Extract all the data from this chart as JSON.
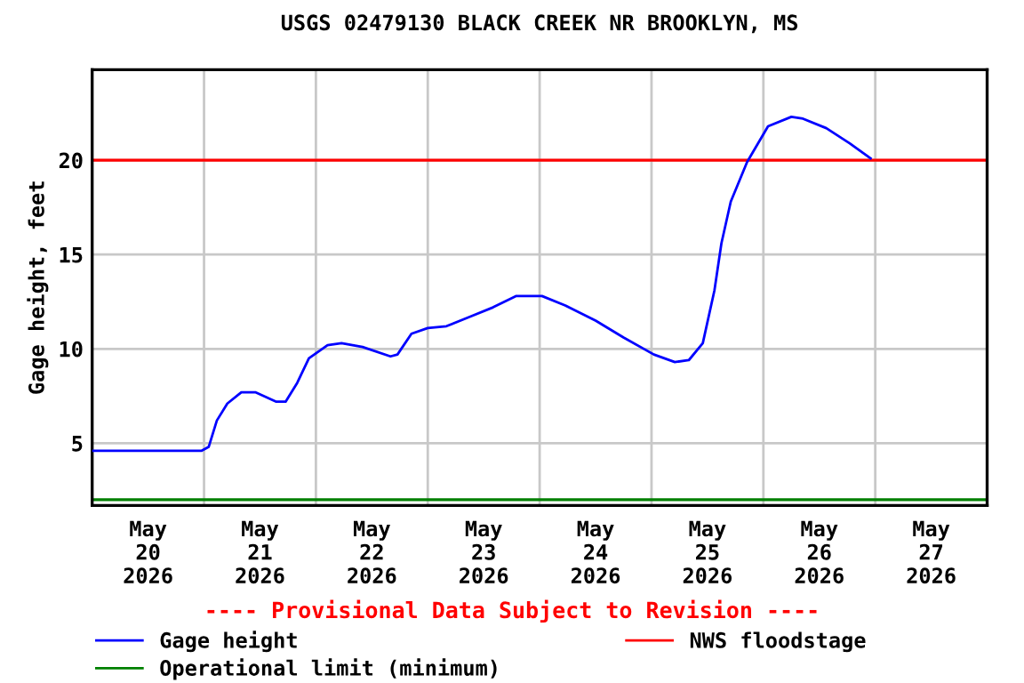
{
  "chart_data": {
    "type": "line",
    "title": "USGS 02479130 BLACK CREEK NR BROOKLYN, MS",
    "ylabel": "Gage height, feet",
    "x": [
      "2026-05-20T00:00",
      "2026-05-20T23:30",
      "2026-05-21T01:00",
      "2026-05-21T02:45",
      "2026-05-21T05:00",
      "2026-05-21T08:00",
      "2026-05-21T11:00",
      "2026-05-21T15:30",
      "2026-05-21T17:30",
      "2026-05-21T20:00",
      "2026-05-21T22:30",
      "2026-05-22T02:30",
      "2026-05-22T05:30",
      "2026-05-22T10:00",
      "2026-05-22T16:00",
      "2026-05-22T17:30",
      "2026-05-22T20:30",
      "2026-05-23T00:00",
      "2026-05-23T04:00",
      "2026-05-23T09:00",
      "2026-05-23T14:00",
      "2026-05-23T19:00",
      "2026-05-24T00:30",
      "2026-05-24T05:30",
      "2026-05-24T12:00",
      "2026-05-24T18:00",
      "2026-05-25T00:30",
      "2026-05-25T05:00",
      "2026-05-25T08:00",
      "2026-05-25T11:00",
      "2026-05-25T13:30",
      "2026-05-25T15:00",
      "2026-05-25T17:00",
      "2026-05-25T20:30",
      "2026-05-26T01:00",
      "2026-05-26T06:00",
      "2026-05-26T08:30",
      "2026-05-26T13:30",
      "2026-05-26T18:30",
      "2026-05-26T23:00"
    ],
    "series": [
      {
        "name": "Gage height",
        "color": "#0000ff",
        "values": [
          4.6,
          4.6,
          4.8,
          6.2,
          7.1,
          7.7,
          7.7,
          7.2,
          7.2,
          8.2,
          9.5,
          10.2,
          10.3,
          10.1,
          9.6,
          9.7,
          10.8,
          11.1,
          11.2,
          11.7,
          12.2,
          12.8,
          12.8,
          12.3,
          11.5,
          10.6,
          9.7,
          9.3,
          9.4,
          10.3,
          13.1,
          15.6,
          17.8,
          19.9,
          21.8,
          22.3,
          22.2,
          21.7,
          20.9,
          20.1
        ]
      }
    ],
    "ref_lines": [
      {
        "axis": "y",
        "value": 2,
        "label": "Operational limit (minimum)",
        "color": "#008000"
      },
      {
        "axis": "y",
        "value": 20,
        "label": "NWS floodstage",
        "color": "#ff0000"
      }
    ],
    "annotations": [
      "---- Provisional Data Subject to Revision ----"
    ],
    "xlim": [
      "2026-05-20",
      "2026-05-28"
    ],
    "xticks": [
      {
        "value": "2026-05-20T12:00",
        "label": "May\n20\n2026"
      },
      {
        "value": "2026-05-21",
        "label": null
      },
      {
        "value": "2026-05-21T12:00",
        "label": "May\n21\n2026"
      },
      {
        "value": "2026-05-22",
        "label": null
      },
      {
        "value": "2026-05-22T12:00",
        "label": "May\n22\n2026"
      },
      {
        "value": "2026-05-23",
        "label": null
      },
      {
        "value": "2026-05-23T12:00",
        "label": "May\n23\n2026"
      },
      {
        "value": "2026-05-24",
        "label": null
      },
      {
        "value": "2026-05-24T12:00",
        "label": "May\n24\n2026"
      },
      {
        "value": "2026-05-25",
        "label": null
      },
      {
        "value": "2026-05-25T12:00",
        "label": "May\n25\n2026"
      },
      {
        "value": "2026-05-26",
        "label": null
      },
      {
        "value": "2026-05-26T12:00",
        "label": "May\n26\n2026"
      },
      {
        "value": "2026-05-27",
        "label": null
      },
      {
        "value": "2026-05-27T12:00",
        "label": "May\n27\n2026"
      }
    ],
    "ylim": [
      1.7,
      24.8
    ],
    "yticks": [
      5,
      10,
      15,
      20
    ],
    "grid": true,
    "legend": "bottom",
    "marker": "none",
    "line_style": "solid"
  }
}
